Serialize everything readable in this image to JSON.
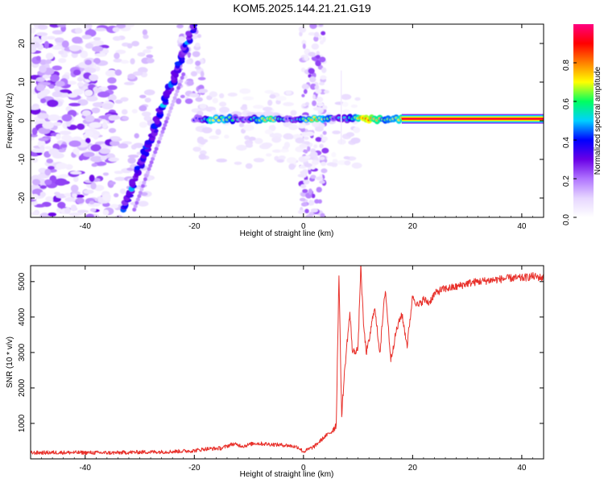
{
  "title": "KOM5.2025.144.21.21.G19",
  "chart_data": [
    {
      "type": "heatmap",
      "title": "KOM5.2025.144.21.21.G19",
      "xlabel": "Height of straight line (km)",
      "ylabel": "Frequency (Hz)",
      "xlim": [
        -50,
        44
      ],
      "ylim": [
        -25,
        25
      ],
      "x_ticks": [
        -40,
        -20,
        0,
        20,
        40
      ],
      "y_ticks": [
        -20,
        -10,
        0,
        10,
        20
      ],
      "colorbar": {
        "label": "Normalized spectral amplitude",
        "range": [
          0.0,
          1.0
        ],
        "ticks": [
          "0.0",
          "0.2",
          "0.4",
          "0.6",
          "0.8"
        ],
        "colors": [
          "#ffffff",
          "#e6d6ff",
          "#b074ff",
          "#6a00e6",
          "#0000ff",
          "#00d0ff",
          "#00ff60",
          "#ffff00",
          "#ff8000",
          "#ff0000",
          "#ff0080"
        ]
      },
      "features": [
        {
          "kind": "carrier",
          "x_range": [
            -20,
            44
          ],
          "frequency": 0.5,
          "amplitude_note": "rises to near 1.0 above 20 km"
        },
        {
          "kind": "diagonal-streak",
          "from": [
            -33,
            -23
          ],
          "to": [
            -20,
            25
          ]
        },
        {
          "kind": "noise-cloud",
          "x_range": [
            -50,
            -35
          ],
          "y_range": [
            -25,
            25
          ]
        }
      ],
      "grid": false,
      "legend": "colorbar-right"
    },
    {
      "type": "line",
      "xlabel": "Height of straight line (km)",
      "ylabel": "SNR (10 * v/v)",
      "xlim": [
        -50,
        44
      ],
      "ylim": [
        0,
        5450
      ],
      "x_ticks": [
        -40,
        -20,
        0,
        20,
        40
      ],
      "y_ticks": [
        1000,
        2000,
        3000,
        4000,
        5000
      ],
      "series": [
        {
          "color": "#e8302a",
          "x": [
            -50,
            -45,
            -40,
            -35,
            -30,
            -25,
            -20,
            -18,
            -15,
            -13,
            -11,
            -9,
            -7,
            -5,
            -3,
            -1,
            0,
            2,
            4,
            5,
            6,
            6.5,
            7,
            7.5,
            8,
            8.5,
            9,
            10,
            10.5,
            11,
            11.5,
            12,
            13,
            14,
            15,
            16,
            16.5,
            17,
            18,
            19,
            20,
            21,
            22,
            23,
            24,
            25,
            26,
            28,
            30,
            32,
            35,
            38,
            40,
            42,
            44
          ],
          "y": [
            170,
            180,
            175,
            170,
            190,
            200,
            230,
            280,
            300,
            420,
            360,
            440,
            420,
            400,
            380,
            330,
            200,
            350,
            640,
            750,
            950,
            5200,
            1200,
            2400,
            3300,
            4100,
            3000,
            3100,
            5450,
            3800,
            3000,
            3300,
            4300,
            3000,
            4800,
            2800,
            3200,
            3600,
            4100,
            3200,
            4600,
            4300,
            4500,
            4400,
            4650,
            4750,
            4800,
            4850,
            4950,
            5000,
            5050,
            5100,
            5100,
            5150,
            5100
          ]
        }
      ],
      "grid": false
    }
  ]
}
